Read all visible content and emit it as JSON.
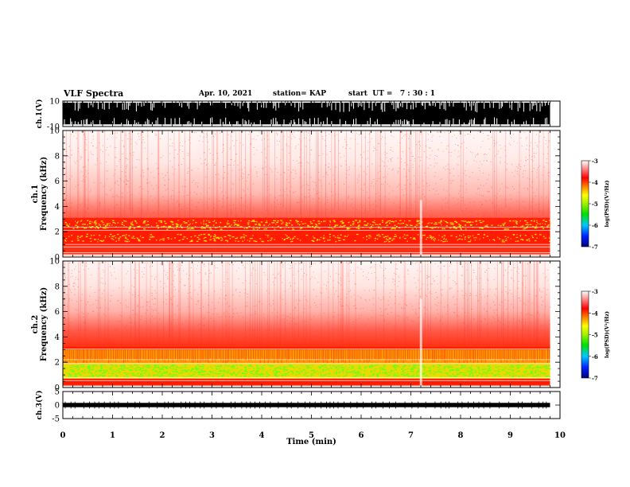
{
  "header": {
    "title": "VLF Spectra",
    "date": "Apr. 10, 2021",
    "station": "station= KAP",
    "start": "start  UT =   7 : 30 : 1"
  },
  "chart_data": [
    {
      "type": "line",
      "panel": "ch1-waveform",
      "ylabel": "ch.1(V)",
      "ylim": [
        -10,
        10
      ],
      "yticks": [
        "10",
        "-10"
      ],
      "xlim": [
        0,
        10
      ]
    },
    {
      "type": "heatmap",
      "panel": "ch1-spectrogram",
      "ylabel": "ch.1  Frequency  (kHz)",
      "ylim": [
        0,
        10
      ],
      "yticks": [
        "0",
        "2",
        "4",
        "6",
        "8",
        "10"
      ],
      "xlim": [
        0,
        10
      ],
      "data_end_min": 9.8,
      "colorbar": {
        "label": "log(PSD)(V²/Hz)",
        "min": -7,
        "max": -3,
        "ticks": [
          "-3",
          "-4",
          "-5",
          "-6",
          "-7"
        ]
      }
    },
    {
      "type": "heatmap",
      "panel": "ch2-spectrogram",
      "ylabel": "ch.2  Frequency  (kHz)",
      "ylim": [
        0,
        10
      ],
      "yticks": [
        "0",
        "2",
        "4",
        "6",
        "8",
        "10"
      ],
      "xlim": [
        0,
        10
      ],
      "data_end_min": 9.8,
      "colorbar": {
        "label": "log(PSD)(V²/Hz)",
        "min": -7,
        "max": -3,
        "ticks": [
          "-3",
          "-4",
          "-5",
          "-6",
          "-7"
        ]
      }
    },
    {
      "type": "line",
      "panel": "ch3-waveform",
      "ylabel": "ch.3(V)",
      "ylim": [
        -5,
        5
      ],
      "yticks": [
        "5",
        "0",
        "-5"
      ],
      "xlim": [
        0,
        10
      ],
      "xlabel": "Time  (min)",
      "xticks": [
        "0",
        "1",
        "2",
        "3",
        "4",
        "5",
        "6",
        "7",
        "8",
        "9",
        "10"
      ]
    }
  ]
}
